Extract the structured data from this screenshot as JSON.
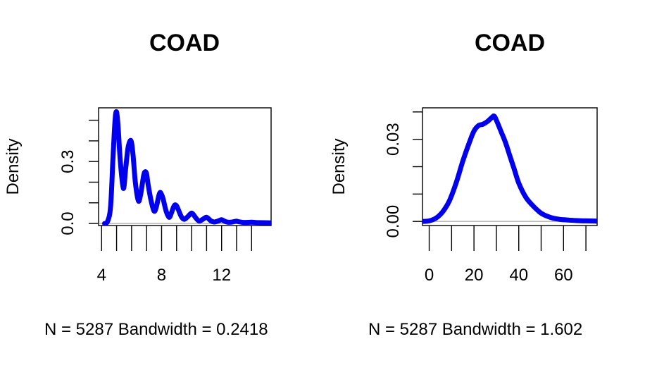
{
  "chart_data": [
    {
      "type": "line",
      "title": "COAD",
      "xlabel": "N = 5287   Bandwidth = 0.2418",
      "ylabel": "Density",
      "xlim": [
        3.8,
        15.3
      ],
      "ylim": [
        -0.01,
        0.56
      ],
      "x_ticks": [
        4,
        5,
        6,
        7,
        8,
        9,
        10,
        11,
        12,
        13,
        14
      ],
      "x_tick_labels": [
        "4",
        "",
        "",
        "",
        "8",
        "",
        "",
        "",
        "12",
        "",
        ""
      ],
      "y_ticks": [
        0.0,
        0.1,
        0.2,
        0.3,
        0.4,
        0.5
      ],
      "y_tick_labels": [
        "0.0",
        "",
        "",
        "0.3",
        "",
        ""
      ],
      "series": [
        {
          "color": "#0000ee",
          "x": [
            4.2,
            4.4,
            4.6,
            4.75,
            4.9,
            5.0,
            5.1,
            5.25,
            5.45,
            5.6,
            5.75,
            5.9,
            6.0,
            6.1,
            6.25,
            6.45,
            6.6,
            6.8,
            6.9,
            7.0,
            7.1,
            7.3,
            7.5,
            7.65,
            7.8,
            7.9,
            8.0,
            8.1,
            8.3,
            8.5,
            8.65,
            8.8,
            8.9,
            9.0,
            9.1,
            9.3,
            9.5,
            9.7,
            9.9,
            10.0,
            10.1,
            10.3,
            10.5,
            10.7,
            10.9,
            11.0,
            11.1,
            11.3,
            11.5,
            11.7,
            11.9,
            12.0,
            12.1,
            12.3,
            12.6,
            12.9,
            13.0,
            13.1,
            13.5,
            14.0,
            14.5,
            15.3
          ],
          "y": [
            0.0,
            0.01,
            0.08,
            0.3,
            0.5,
            0.54,
            0.47,
            0.3,
            0.17,
            0.26,
            0.36,
            0.4,
            0.39,
            0.33,
            0.2,
            0.11,
            0.14,
            0.23,
            0.25,
            0.24,
            0.19,
            0.11,
            0.06,
            0.08,
            0.13,
            0.15,
            0.14,
            0.12,
            0.06,
            0.03,
            0.05,
            0.08,
            0.09,
            0.085,
            0.07,
            0.035,
            0.02,
            0.03,
            0.045,
            0.05,
            0.045,
            0.025,
            0.012,
            0.018,
            0.028,
            0.03,
            0.025,
            0.012,
            0.007,
            0.01,
            0.016,
            0.018,
            0.015,
            0.008,
            0.006,
            0.01,
            0.011,
            0.009,
            0.005,
            0.006,
            0.004,
            0.003
          ]
        }
      ]
    },
    {
      "type": "line",
      "title": "COAD",
      "xlabel": "N = 5287   Bandwidth = 1.602",
      "ylabel": "Density",
      "xlim": [
        -3,
        75
      ],
      "ylim": [
        -0.0015,
        0.0415
      ],
      "x_ticks": [
        0,
        10,
        20,
        30,
        40,
        50,
        60,
        70
      ],
      "x_tick_labels": [
        "0",
        "",
        "20",
        "",
        "40",
        "",
        "60",
        ""
      ],
      "y_ticks": [
        0.0,
        0.01,
        0.02,
        0.03,
        0.04
      ],
      "y_tick_labels": [
        "0.00",
        "",
        "",
        "0.03",
        ""
      ],
      "series": [
        {
          "color": "#0000ee",
          "x": [
            -3,
            0,
            3,
            6,
            9,
            12,
            15,
            18,
            20,
            22,
            24,
            26,
            28,
            29,
            30,
            32,
            34,
            36,
            38,
            40,
            43,
            46,
            50,
            54,
            58,
            62,
            66,
            70,
            75
          ],
          "y": [
            0.0,
            0.0002,
            0.0012,
            0.0035,
            0.0075,
            0.014,
            0.022,
            0.029,
            0.033,
            0.035,
            0.0355,
            0.0365,
            0.038,
            0.0385,
            0.037,
            0.033,
            0.029,
            0.024,
            0.019,
            0.014,
            0.009,
            0.006,
            0.003,
            0.0015,
            0.0008,
            0.0005,
            0.0003,
            0.0002,
            0.0001
          ]
        }
      ]
    }
  ]
}
